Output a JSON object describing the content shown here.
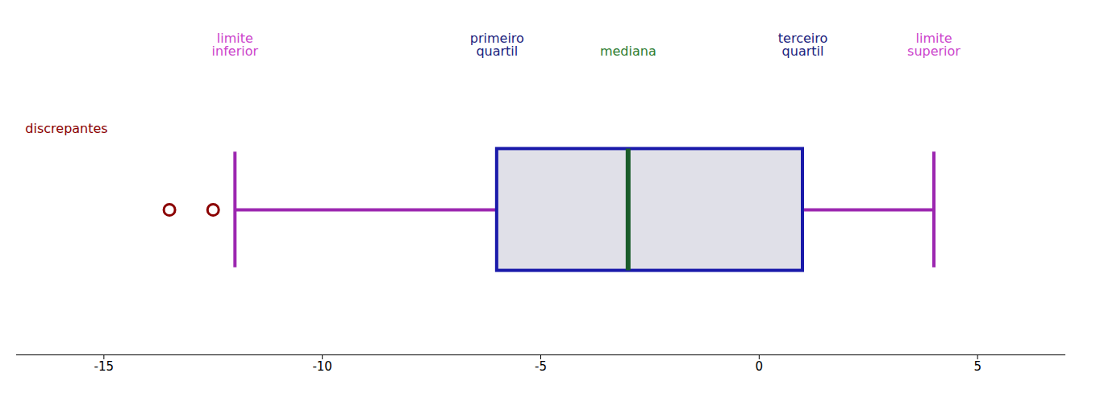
{
  "chart_data": {
    "type": "box",
    "orientation": "horizontal",
    "q1": -6,
    "median": -3,
    "q3": 1,
    "whisker_low": -12,
    "whisker_high": 4,
    "outliers": [
      -13.5,
      -12.5
    ],
    "colors": {
      "box": "#1a1aaa",
      "box_fill": "#e0e0e8",
      "median": "#1a5c2a",
      "whisker": "#9c27b0",
      "outliers": "#8b0000"
    },
    "xlim": [
      -17,
      7
    ],
    "xticks": [
      -15,
      -10,
      -5,
      0,
      5
    ],
    "ylim": [
      0,
      1
    ],
    "tick_labels": "x",
    "grid": false,
    "annotations": [
      {
        "text": "limite\ninferior",
        "x": -12,
        "color": "#cc44cc"
      },
      {
        "text": "primeiro\nquartil",
        "x": -6,
        "color": "#1a237e"
      },
      {
        "text": "mediana",
        "x": -3,
        "color": "#2e7d32"
      },
      {
        "text": "terceiro\nquartil",
        "x": 1,
        "color": "#1a237e"
      },
      {
        "text": "limite\nsuperior",
        "x": 4,
        "color": "#cc44cc"
      },
      {
        "text": "discrepantes",
        "x": -16.8,
        "y": 0.78,
        "color": "#8b0000"
      }
    ]
  }
}
